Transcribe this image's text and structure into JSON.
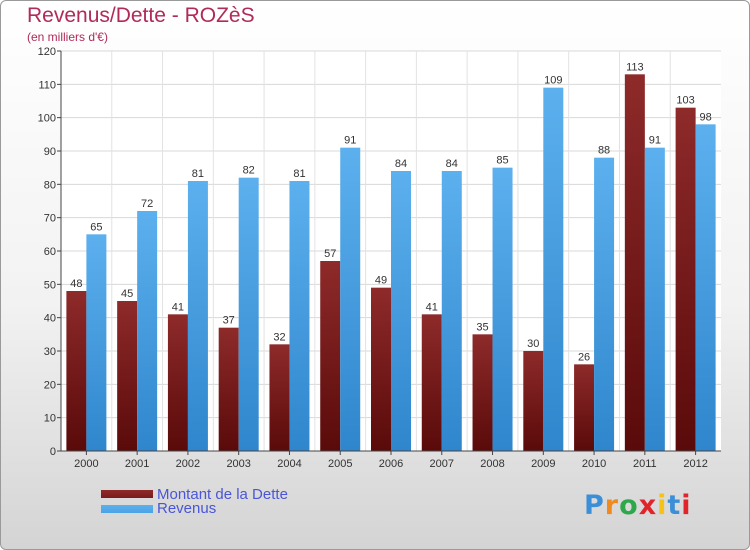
{
  "title": "Revenus/Dette - ROZèS",
  "subtitle": "(en milliers d'€)",
  "logo": {
    "text": "Proxiti",
    "colors": [
      "#3a8fd8",
      "#f08a1c",
      "#2ea84a",
      "#e0242a",
      "#f5c21a",
      "#3a8fd8",
      "#e0242a"
    ]
  },
  "chart_data": {
    "type": "bar",
    "categories": [
      "2000",
      "2001",
      "2002",
      "2003",
      "2004",
      "2005",
      "2006",
      "2007",
      "2008",
      "2009",
      "2010",
      "2011",
      "2012"
    ],
    "series": [
      {
        "name": "Montant de la Dette",
        "color": "#7a1a1a",
        "values": [
          48,
          45,
          41,
          37,
          32,
          57,
          49,
          41,
          35,
          30,
          26,
          113,
          103
        ]
      },
      {
        "name": "Revenus",
        "color": "#4aa3e6",
        "values": [
          65,
          72,
          81,
          82,
          81,
          91,
          84,
          84,
          85,
          109,
          88,
          91,
          98
        ]
      }
    ],
    "ylim": [
      0,
      120
    ],
    "yticks": [
      0,
      10,
      20,
      30,
      40,
      50,
      60,
      70,
      80,
      90,
      100,
      110,
      120
    ],
    "grid": true,
    "legend_position": "bottom-left"
  }
}
